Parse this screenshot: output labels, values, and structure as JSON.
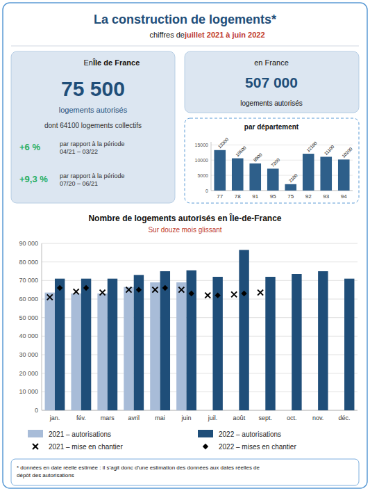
{
  "title": "La construction de logements*",
  "annotations": [
    {
      "text": "chiffres de "
    },
    {
      "text": "juillet 2021 à juin 2022",
      "color": "#c0392b"
    },
    {
      "text": "En "
    },
    {
      "text": "Île de France"
    },
    {
      "text": "75 500",
      "color": "#1f4e79"
    },
    {
      "text": "logements autorisés",
      "color": "#1f4e79"
    },
    {
      "text": "dont 64100 logements collectifs"
    },
    {
      "text": "+6 %",
      "color": "#27ae60"
    },
    {
      "text": "par rapport à la période\n04/21 – 03/22"
    },
    {
      "text": "+9,3 %",
      "color": "#27ae60"
    },
    {
      "text": "par rapport à la période\n07/20 – 06/21"
    },
    {
      "text": "en France"
    },
    {
      "text": "507 000",
      "color": "#1f4e79"
    },
    {
      "text": "logements autorisés"
    },
    {
      "text": "* données en date réelle estimée : il s’agit donc d’une estimation des données aux dates réelles de\ndépôt des autorisations"
    }
  ],
  "chart_data": [
    {
      "type": "bar",
      "title": "Nombre de logements autorisés en Île-de-France",
      "subtitle": "Sur douze mois glissant",
      "categories": [
        "jan.",
        "fév.",
        "mars",
        "avril",
        "mai",
        "juin",
        "juil.",
        "août",
        "sept.",
        "oct.",
        "nov.",
        "déc."
      ],
      "series": [
        {
          "name": "2021 – autorisations",
          "type": "bar",
          "color": "#a8bcd8",
          "values": [
            63500,
            63000,
            63000,
            66500,
            69000,
            69000,
            null,
            null,
            null,
            null,
            null,
            null
          ]
        },
        {
          "name": "2022 – autorisations",
          "type": "bar",
          "color": "#1f4e79",
          "values": [
            71000,
            71000,
            71000,
            73000,
            75000,
            75500,
            72000,
            86500,
            72000,
            73500,
            75000,
            71000
          ]
        },
        {
          "name": "2021 – mise en chantier",
          "type": "scatter",
          "marker": "x",
          "color": "#000000",
          "values": [
            61000,
            64000,
            63500,
            65000,
            65000,
            65000,
            62000,
            62500,
            63500,
            null,
            null,
            null
          ]
        },
        {
          "name": "2022 – mises en chantier",
          "type": "scatter",
          "marker": "diamond",
          "color": "#000000",
          "values": [
            66000,
            66000,
            null,
            65000,
            66000,
            63000,
            62000,
            63000,
            null,
            null,
            null,
            null
          ]
        }
      ],
      "ylim": [
        0,
        90000
      ],
      "yticks": [
        0,
        {
          "value": 10000,
          "label": "10 000"
        },
        {
          "value": 20000,
          "label": "20 000"
        },
        {
          "value": 30000,
          "label": "30 000"
        },
        {
          "value": 40000,
          "label": "40 000"
        },
        {
          "value": 50000,
          "label": "50 000"
        },
        {
          "value": 60000,
          "label": "60 000"
        },
        {
          "value": 70000,
          "label": "70 000"
        },
        {
          "value": 80000,
          "label": "80 000"
        },
        {
          "value": 90000,
          "label": "90 000"
        }
      ],
      "grid": true,
      "legend": "bottom"
    },
    {
      "type": "bar",
      "title": "par département",
      "categories": [
        "77",
        "78",
        "91",
        "95",
        "75",
        "92",
        "93",
        "94"
      ],
      "values": [
        13300,
        10600,
        8900,
        7200,
        2100,
        12100,
        11100,
        10200
      ],
      "color": "#2e5f8a",
      "ylim": [
        0,
        16000
      ],
      "yticks": [
        0,
        5000,
        10000,
        15000
      ],
      "grid": true,
      "data_labels": true
    }
  ]
}
